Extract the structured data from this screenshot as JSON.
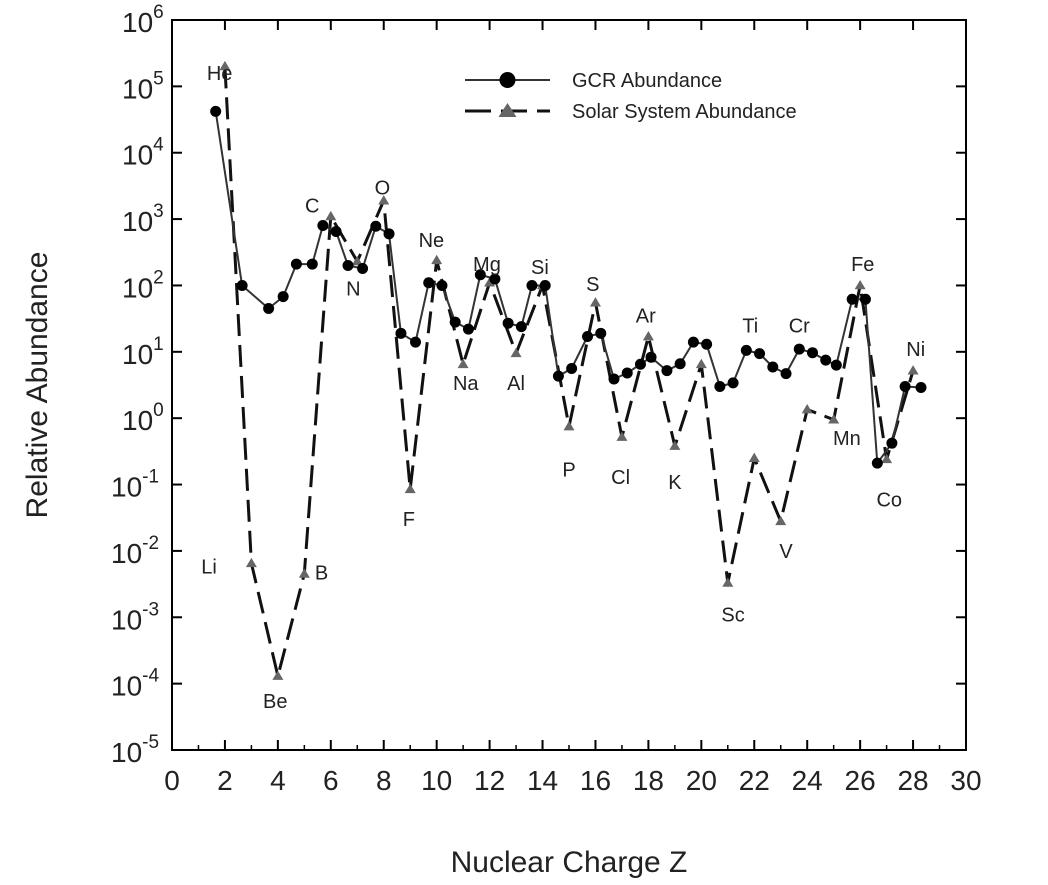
{
  "chart_data": {
    "type": "line",
    "xlabel": "Nuclear Charge Z",
    "ylabel": "Relative Abundance",
    "yscale": "log",
    "xlim": [
      0,
      30
    ],
    "ylim_exp": [
      -5,
      6
    ],
    "x_ticks": [
      "0",
      "2",
      "4",
      "6",
      "8",
      "10",
      "12",
      "14",
      "16",
      "18",
      "20",
      "22",
      "24",
      "26",
      "28",
      "30"
    ],
    "y_tick_base": "10",
    "y_tick_exponents": [
      "-5",
      "-4",
      "-3",
      "-2",
      "-1",
      "0",
      "1",
      "2",
      "3",
      "4",
      "5",
      "6"
    ],
    "legend_position": "top-right",
    "series": [
      {
        "name": "GCR Abundance",
        "marker": "circle",
        "line": "solid",
        "points": [
          {
            "x": 1.65,
            "y": 42000
          },
          {
            "x": 2.65,
            "y": 100
          },
          {
            "x": 3.65,
            "y": 45
          },
          {
            "x": 4.2,
            "y": 68
          },
          {
            "x": 4.7,
            "y": 210
          },
          {
            "x": 5.3,
            "y": 210
          },
          {
            "x": 5.7,
            "y": 800
          },
          {
            "x": 6.2,
            "y": 650
          },
          {
            "x": 6.65,
            "y": 200
          },
          {
            "x": 7.2,
            "y": 180
          },
          {
            "x": 7.7,
            "y": 780
          },
          {
            "x": 8.2,
            "y": 600
          },
          {
            "x": 8.65,
            "y": 19
          },
          {
            "x": 9.2,
            "y": 14
          },
          {
            "x": 9.7,
            "y": 110
          },
          {
            "x": 10.2,
            "y": 100
          },
          {
            "x": 10.7,
            "y": 28
          },
          {
            "x": 11.2,
            "y": 22
          },
          {
            "x": 11.65,
            "y": 145
          },
          {
            "x": 12.2,
            "y": 125
          },
          {
            "x": 12.7,
            "y": 27
          },
          {
            "x": 13.2,
            "y": 24
          },
          {
            "x": 13.6,
            "y": 100
          },
          {
            "x": 14.1,
            "y": 100
          },
          {
            "x": 14.6,
            "y": 4.3
          },
          {
            "x": 15.1,
            "y": 5.6
          },
          {
            "x": 15.7,
            "y": 17
          },
          {
            "x": 16.2,
            "y": 19
          },
          {
            "x": 16.7,
            "y": 3.9
          },
          {
            "x": 17.2,
            "y": 4.8
          },
          {
            "x": 17.7,
            "y": 6.5
          },
          {
            "x": 18.1,
            "y": 8.3
          },
          {
            "x": 18.7,
            "y": 5.2
          },
          {
            "x": 19.2,
            "y": 6.6
          },
          {
            "x": 19.7,
            "y": 14
          },
          {
            "x": 20.2,
            "y": 13
          },
          {
            "x": 20.7,
            "y": 3
          },
          {
            "x": 21.2,
            "y": 3.4
          },
          {
            "x": 21.7,
            "y": 10.5
          },
          {
            "x": 22.2,
            "y": 9.4
          },
          {
            "x": 22.7,
            "y": 5.9
          },
          {
            "x": 23.2,
            "y": 4.7
          },
          {
            "x": 23.7,
            "y": 11
          },
          {
            "x": 24.2,
            "y": 9.7
          },
          {
            "x": 24.7,
            "y": 7.5
          },
          {
            "x": 25.1,
            "y": 6.3
          },
          {
            "x": 25.7,
            "y": 62
          },
          {
            "x": 26.2,
            "y": 62
          },
          {
            "x": 26.65,
            "y": 0.21
          },
          {
            "x": 27.2,
            "y": 0.42
          },
          {
            "x": 27.7,
            "y": 3
          },
          {
            "x": 28.3,
            "y": 2.9
          }
        ]
      },
      {
        "name": "Solar System Abundance",
        "marker": "triangle",
        "line": "dashed",
        "points": [
          {
            "x": 2,
            "y": 200000
          },
          {
            "x": 3,
            "y": 0.0065
          },
          {
            "x": 4,
            "y": 0.00013
          },
          {
            "x": 5,
            "y": 0.0045
          },
          {
            "x": 6,
            "y": 1100
          },
          {
            "x": 7,
            "y": 230
          },
          {
            "x": 8,
            "y": 1900
          },
          {
            "x": 9,
            "y": 0.085
          },
          {
            "x": 10,
            "y": 240
          },
          {
            "x": 11,
            "y": 6.5
          },
          {
            "x": 12,
            "y": 110
          },
          {
            "x": 13,
            "y": 9.5
          },
          {
            "x": 14,
            "y": 100
          },
          {
            "x": 15,
            "y": 0.75
          },
          {
            "x": 16,
            "y": 55
          },
          {
            "x": 17,
            "y": 0.52
          },
          {
            "x": 18,
            "y": 17
          },
          {
            "x": 19,
            "y": 0.38
          },
          {
            "x": 20,
            "y": 6.5
          },
          {
            "x": 21,
            "y": 0.0033
          },
          {
            "x": 22,
            "y": 0.25
          },
          {
            "x": 23,
            "y": 0.028
          },
          {
            "x": 24,
            "y": 1.35
          },
          {
            "x": 25,
            "y": 0.95
          },
          {
            "x": 26,
            "y": 100
          },
          {
            "x": 27,
            "y": 0.24
          },
          {
            "x": 28,
            "y": 5.2
          }
        ]
      }
    ],
    "annotations": [
      {
        "text": "He",
        "x": 1.8,
        "y": 160000
      },
      {
        "text": "Li",
        "x": 1.4,
        "y": 0.0058
      },
      {
        "text": "Be",
        "x": 3.9,
        "y": 5.5e-05
      },
      {
        "text": "B",
        "x": 5.65,
        "y": 0.0047
      },
      {
        "text": "C",
        "x": 5.3,
        "y": 1600
      },
      {
        "text": "N",
        "x": 6.85,
        "y": 90
      },
      {
        "text": "O",
        "x": 7.95,
        "y": 3000
      },
      {
        "text": "F",
        "x": 8.95,
        "y": 0.03
      },
      {
        "text": "Ne",
        "x": 9.8,
        "y": 480
      },
      {
        "text": "Na",
        "x": 11.1,
        "y": 3.4
      },
      {
        "text": "Mg",
        "x": 11.9,
        "y": 210
      },
      {
        "text": "Al",
        "x": 13,
        "y": 3.4
      },
      {
        "text": "Si",
        "x": 13.9,
        "y": 190
      },
      {
        "text": "S",
        "x": 15.9,
        "y": 105
      },
      {
        "text": "P",
        "x": 15,
        "y": 0.17
      },
      {
        "text": "Cl",
        "x": 16.95,
        "y": 0.13
      },
      {
        "text": "Ar",
        "x": 17.9,
        "y": 35
      },
      {
        "text": "K",
        "x": 19,
        "y": 0.11
      },
      {
        "text": "Ti",
        "x": 21.85,
        "y": 25
      },
      {
        "text": "Cr",
        "x": 23.7,
        "y": 25
      },
      {
        "text": "Sc",
        "x": 21.2,
        "y": 0.0011
      },
      {
        "text": "V",
        "x": 23.2,
        "y": 0.01
      },
      {
        "text": "Mn",
        "x": 25.5,
        "y": 0.5
      },
      {
        "text": "Fe",
        "x": 26.1,
        "y": 210
      },
      {
        "text": "Co",
        "x": 27.1,
        "y": 0.06
      },
      {
        "text": "Ni",
        "x": 28.1,
        "y": 11
      }
    ]
  }
}
